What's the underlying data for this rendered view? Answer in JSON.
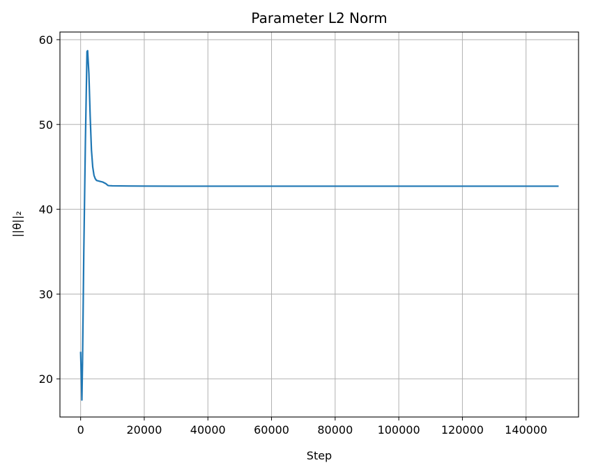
{
  "chart_data": {
    "type": "line",
    "title": "Parameter L2 Norm",
    "xlabel": "Step",
    "ylabel": "||θ||₂",
    "xlim": [
      -6500,
      156500
    ],
    "ylim": [
      15.5,
      60.9
    ],
    "xticks": [
      0,
      20000,
      40000,
      60000,
      80000,
      100000,
      120000,
      140000
    ],
    "xtick_labels": [
      "0",
      "20000",
      "40000",
      "60000",
      "80000",
      "100000",
      "120000",
      "140000"
    ],
    "yticks": [
      20,
      30,
      40,
      50,
      60
    ],
    "ytick_labels": [
      "20",
      "30",
      "40",
      "50",
      "60"
    ],
    "grid": true,
    "series": [
      {
        "color": "#1f77b4",
        "x": [
          0,
          300,
          400,
          600,
          1000,
          1500,
          2000,
          2200,
          2600,
          3000,
          3400,
          3800,
          4200,
          4600,
          5000,
          6000,
          7000,
          8000,
          8600,
          9000,
          10000,
          15000,
          20000,
          30000,
          50000,
          80000,
          100000,
          120000,
          140000,
          150000
        ],
        "y": [
          23.1,
          19.0,
          17.5,
          22.0,
          35.0,
          48.0,
          58.6,
          58.7,
          56.0,
          51.0,
          47.0,
          45.0,
          44.0,
          43.6,
          43.4,
          43.3,
          43.2,
          43.0,
          42.8,
          42.78,
          42.76,
          42.74,
          42.73,
          42.72,
          42.72,
          42.72,
          42.72,
          42.72,
          42.72,
          42.72
        ]
      }
    ]
  }
}
